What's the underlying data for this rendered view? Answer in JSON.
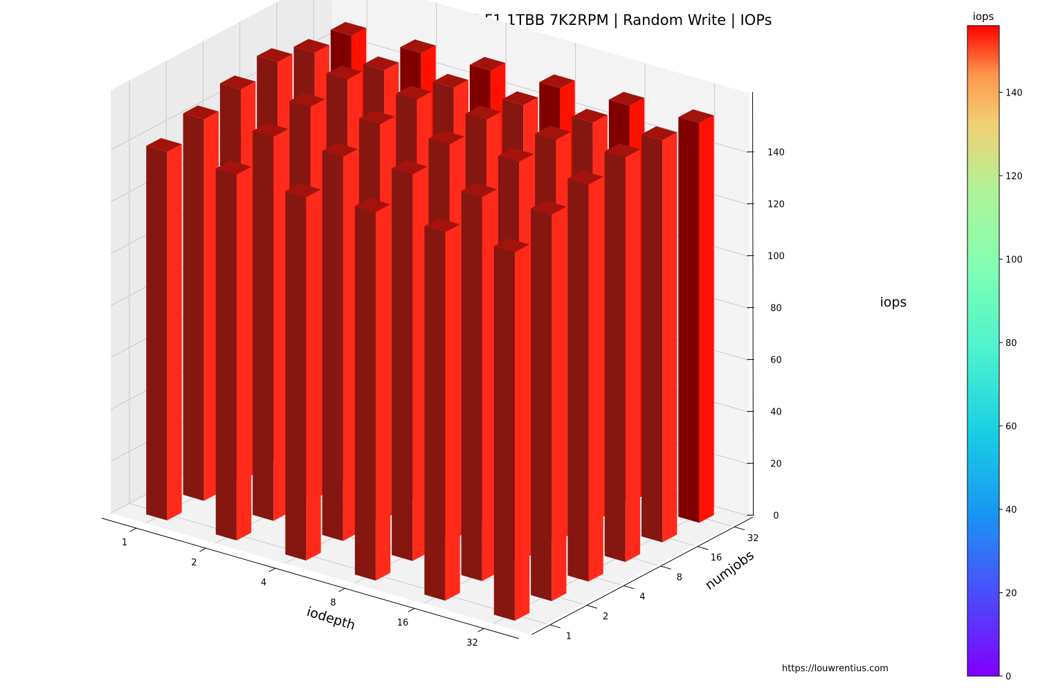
{
  "chart_data": {
    "type": "bar3d",
    "title": "MICROSERVERG10 SAMSUNG F1 1TBB 7K2RPM | Random Write | IOPs",
    "xlabel": "iodepth",
    "ylabel": "numjobs",
    "zlabel": "iops",
    "x_categories": [
      "1",
      "2",
      "4",
      "8",
      "16",
      "32"
    ],
    "y_categories": [
      "1",
      "2",
      "4",
      "8",
      "16",
      "32"
    ],
    "z_ticks": [
      0,
      20,
      40,
      60,
      80,
      100,
      120,
      140
    ],
    "zlim": [
      0,
      156
    ],
    "values": [
      [
        142,
        141,
        140,
        142,
        142,
        142
      ],
      [
        147,
        148,
        148,
        149,
        148,
        149
      ],
      [
        151,
        152,
        153,
        153,
        154,
        153
      ],
      [
        154,
        155,
        155,
        155,
        155,
        156
      ],
      [
        150,
        151,
        152,
        153,
        154,
        155
      ],
      [
        149,
        150,
        151,
        152,
        153,
        154
      ]
    ],
    "bar_colors": {
      "front_face": "#851710",
      "side_face": "#ff2a1a",
      "top_face": "#a3130c",
      "back_row_front_face": "#800000",
      "back_row_side_face": "#ff1100"
    },
    "colorbar": {
      "label": "iops",
      "ticks": [
        0,
        20,
        40,
        60,
        80,
        100,
        120,
        140
      ],
      "range": [
        0,
        156
      ],
      "colormap": "rainbow"
    },
    "grid": true,
    "pane_color": "#f2f2f2"
  },
  "footer": {
    "source": "https://louwrentius.com"
  }
}
